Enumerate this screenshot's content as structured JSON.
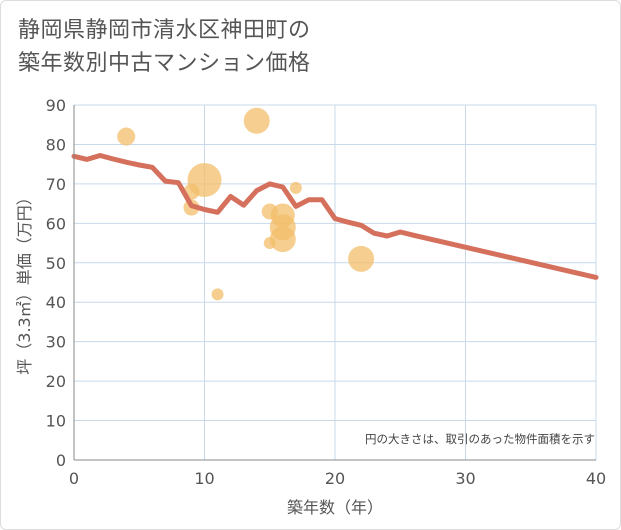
{
  "title_lines": [
    "静岡県静岡市清水区神田町の",
    "築年数別中古マンション価格"
  ],
  "chart_data": {
    "type": "scatter",
    "title": "静岡県静岡市清水区神田町の築年数別中古マンション価格",
    "xlabel": "築年数（年）",
    "ylabel": "坪（3.3㎡）単価（万円）",
    "xlim": [
      0,
      40
    ],
    "ylim": [
      0,
      90
    ],
    "xticks": [
      0,
      10,
      20,
      30,
      40
    ],
    "yticks": [
      0,
      10,
      20,
      30,
      40,
      50,
      60,
      70,
      80,
      90
    ],
    "grid": true,
    "annotation": "円の大きさは、取引のあった物件面積を示す",
    "colors": {
      "bubble": "#f3be6a",
      "line": "#d4705c",
      "grid": "#c8d9ea",
      "axis": "#888888"
    },
    "bubbles": [
      {
        "x": 4,
        "y": 82,
        "size": 9
      },
      {
        "x": 9,
        "y": 68,
        "size": 8
      },
      {
        "x": 9,
        "y": 64,
        "size": 8
      },
      {
        "x": 10,
        "y": 71,
        "size": 17
      },
      {
        "x": 11,
        "y": 42,
        "size": 6
      },
      {
        "x": 14,
        "y": 86,
        "size": 13
      },
      {
        "x": 15,
        "y": 63,
        "size": 8
      },
      {
        "x": 15,
        "y": 55,
        "size": 6
      },
      {
        "x": 16,
        "y": 62,
        "size": 12
      },
      {
        "x": 16,
        "y": 59,
        "size": 13
      },
      {
        "x": 16,
        "y": 56,
        "size": 13
      },
      {
        "x": 17,
        "y": 69,
        "size": 6
      },
      {
        "x": 22,
        "y": 51,
        "size": 13
      }
    ],
    "trend": {
      "x": [
        0,
        1,
        2,
        3,
        4,
        5,
        6,
        7,
        8,
        9,
        10,
        11,
        12,
        13,
        14,
        15,
        16,
        17,
        18,
        19,
        20,
        21,
        22,
        23,
        24,
        25,
        26,
        40
      ],
      "y": [
        77,
        76.2,
        77.2,
        76.3,
        75.5,
        74.8,
        74.2,
        70.7,
        70.3,
        64.5,
        63.5,
        62.8,
        66.8,
        64.6,
        68.3,
        70,
        69.2,
        64.3,
        66,
        66,
        61.2,
        60.3,
        59.5,
        57.5,
        56.8,
        57.8,
        57,
        46.3
      ]
    }
  }
}
